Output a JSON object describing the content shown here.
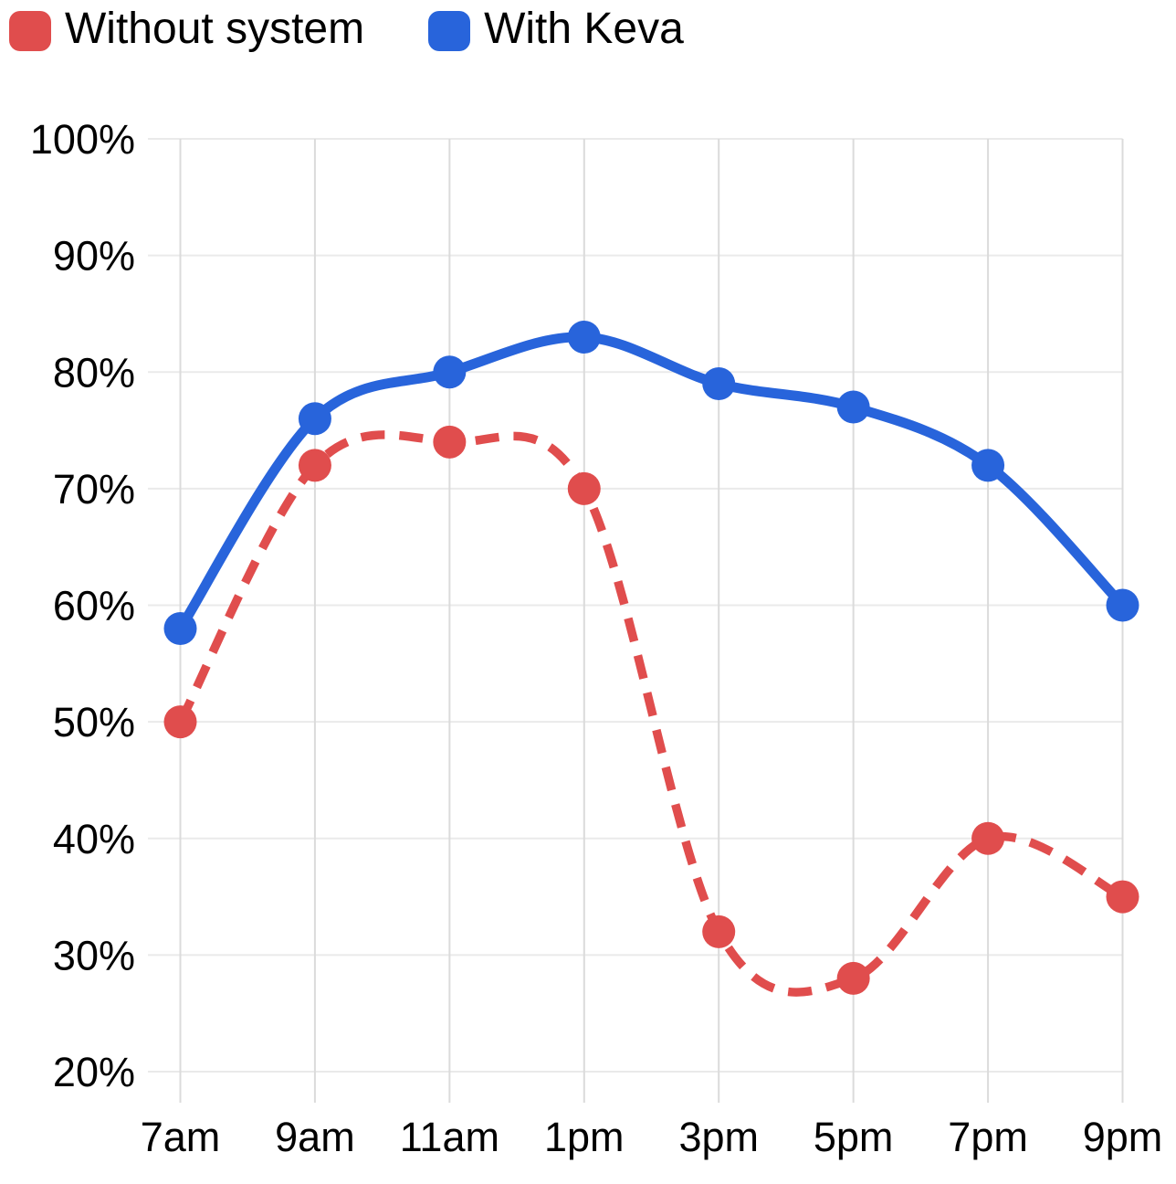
{
  "chart_data": {
    "type": "line",
    "categories": [
      "7am",
      "9am",
      "11am",
      "1pm",
      "3pm",
      "5pm",
      "7pm",
      "9pm"
    ],
    "series": [
      {
        "name": "Without system",
        "color": "#E04D4D",
        "line_style": "dashed",
        "marker": "circle",
        "values": [
          50,
          72,
          74,
          70,
          32,
          28,
          40,
          35
        ]
      },
      {
        "name": "With Keva",
        "color": "#2864DB",
        "line_style": "solid",
        "marker": "circle",
        "values": [
          58,
          76,
          80,
          83,
          79,
          77,
          72,
          60
        ]
      }
    ],
    "title": "",
    "xlabel": "",
    "ylabel": "",
    "ylim": [
      20,
      100
    ],
    "ytick_step": 10,
    "ytick_suffix": "%",
    "grid": true,
    "legend_position": "top-left",
    "axis_text_color": "#000000",
    "grid_color_horizontal": "#EAEAEA",
    "grid_color_vertical": "#DBDBDB"
  }
}
